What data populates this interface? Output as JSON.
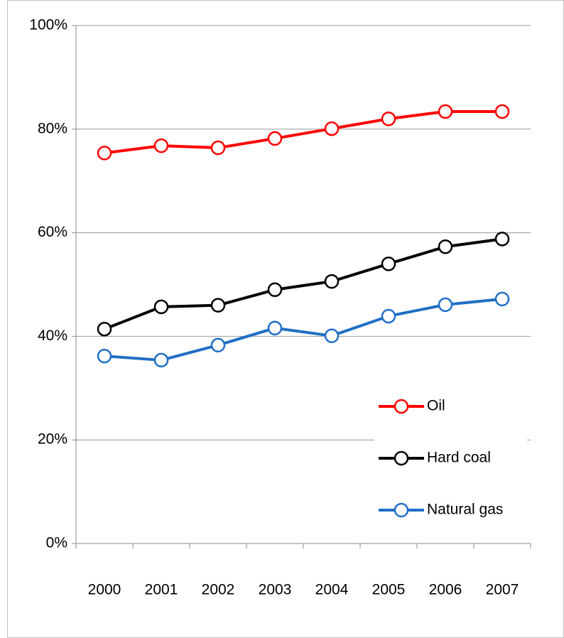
{
  "chart_data": {
    "type": "line",
    "categories": [
      "2000",
      "2001",
      "2002",
      "2003",
      "2004",
      "2005",
      "2006",
      "2007"
    ],
    "series": [
      {
        "name": "Oil",
        "color": "#ff0000",
        "values": [
          75.4,
          76.8,
          76.4,
          78.2,
          80.1,
          82.0,
          83.4,
          83.4
        ]
      },
      {
        "name": "Hard coal",
        "color": "#000000",
        "values": [
          41.4,
          45.7,
          46.0,
          49.0,
          50.6,
          54.0,
          57.3,
          58.8
        ]
      },
      {
        "name": "Natural gas",
        "color": "#1f6fc5",
        "values": [
          36.2,
          35.4,
          38.3,
          41.6,
          40.1,
          43.9,
          46.1,
          47.2
        ]
      }
    ],
    "ylim": [
      0,
      100
    ],
    "yticks": [
      {
        "value": 0,
        "label": "0%"
      },
      {
        "value": 20,
        "label": "20%"
      },
      {
        "value": 40,
        "label": "40%"
      },
      {
        "value": 60,
        "label": "60%"
      },
      {
        "value": 80,
        "label": "80%"
      },
      {
        "value": 100,
        "label": "100%"
      }
    ],
    "grid": true,
    "legend": "lower right"
  }
}
